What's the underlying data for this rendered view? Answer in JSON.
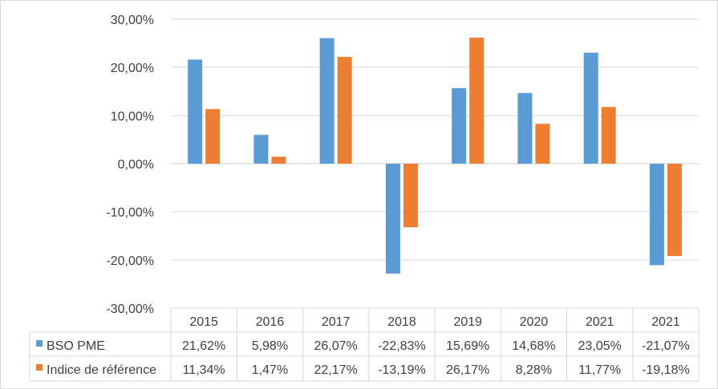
{
  "chart_data": {
    "type": "bar",
    "title": "",
    "xlabel": "",
    "ylabel": "",
    "ylim": [
      -30,
      30
    ],
    "y_step": 10,
    "y_tick_labels": [
      "30,00%",
      "20,00%",
      "10,00%",
      "0,00%",
      "-10,00%",
      "-20,00%",
      "-30,00%"
    ],
    "grid": true,
    "legend": "data-table-left",
    "categories": [
      "2015",
      "2016",
      "2017",
      "2018",
      "2019",
      "2020",
      "2021",
      "2021"
    ],
    "series": [
      {
        "name": "BSO PME",
        "color": "#5b9bd5",
        "values": [
          21.62,
          5.98,
          26.07,
          -22.83,
          15.69,
          14.68,
          23.05,
          -21.07
        ],
        "labels": [
          "21,62%",
          "5,98%",
          "26,07%",
          "-22,83%",
          "15,69%",
          "14,68%",
          "23,05%",
          "-21,07%"
        ]
      },
      {
        "name": "Indice de référence",
        "color": "#ed7d31",
        "values": [
          11.34,
          1.47,
          22.17,
          -13.19,
          26.17,
          8.28,
          11.77,
          -19.18
        ],
        "labels": [
          "11,34%",
          "1,47%",
          "22,17%",
          "-13,19%",
          "26,17%",
          "8,28%",
          "11,77%",
          "-19,18%"
        ]
      }
    ],
    "gridline_color": "#d9d9d9",
    "text_color": "#404040"
  }
}
